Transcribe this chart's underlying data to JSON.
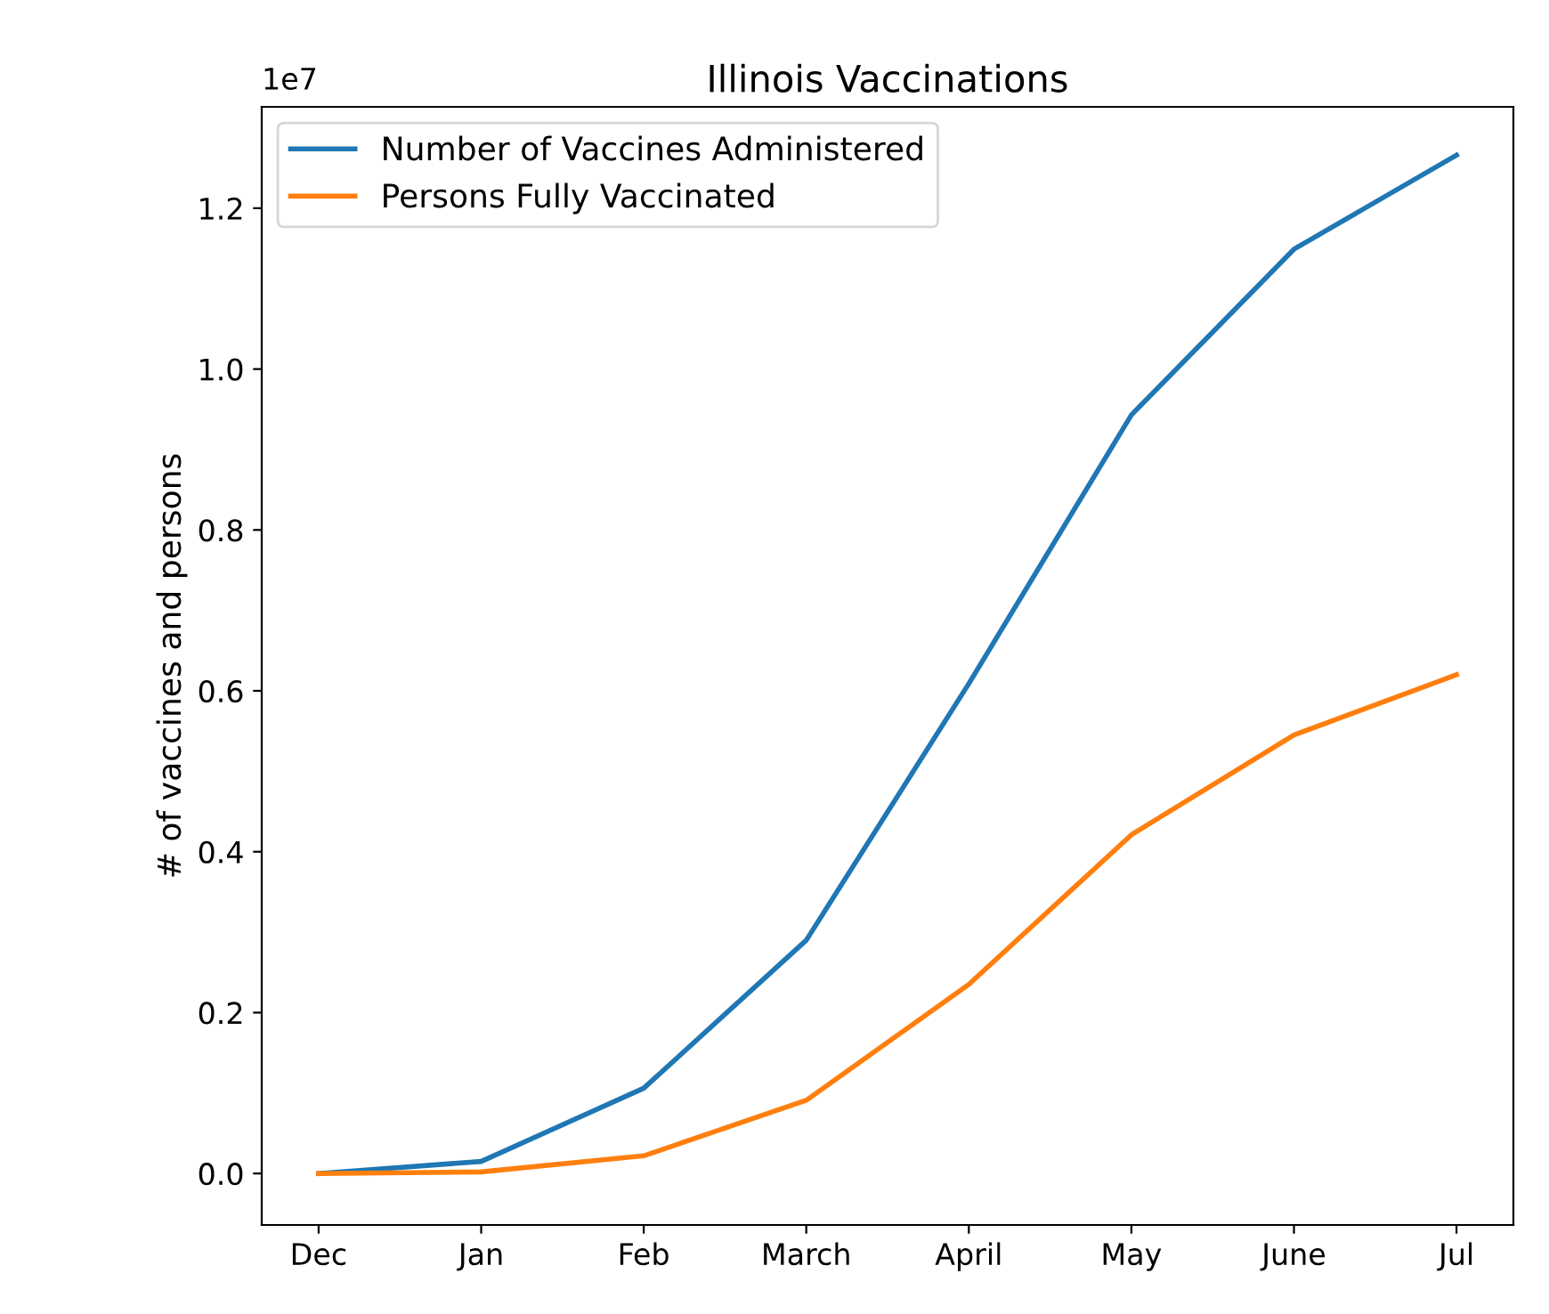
{
  "chart_data": {
    "type": "line",
    "title": "Illinois Vaccinations",
    "ylabel": "# of vaccines and persons",
    "categories": [
      "Dec",
      "Jan",
      "Feb",
      "March",
      "April",
      "May",
      "June",
      "Jul"
    ],
    "series": [
      {
        "name": "Number of Vaccines Administered",
        "color": "#1f77b4",
        "values": [
          0,
          0.015,
          0.106,
          0.29,
          0.609,
          0.943,
          1.149,
          1.266
        ]
      },
      {
        "name": "Persons Fully Vaccinated",
        "color": "#ff7f0e",
        "values": [
          0,
          0.002,
          0.022,
          0.091,
          0.235,
          0.421,
          0.545,
          0.62
        ]
      }
    ],
    "ylim": [
      -0.064,
      1.326
    ],
    "yticks": [
      {
        "value": 0,
        "label": "0.0"
      },
      0.2,
      0.4,
      0.6,
      0.8,
      {
        "value": 1,
        "label": "1.0"
      },
      1.2
    ],
    "annotations": [
      "1e7"
    ],
    "legend": "top left",
    "grid": false,
    "marker": "none",
    "line_style": "solid"
  }
}
